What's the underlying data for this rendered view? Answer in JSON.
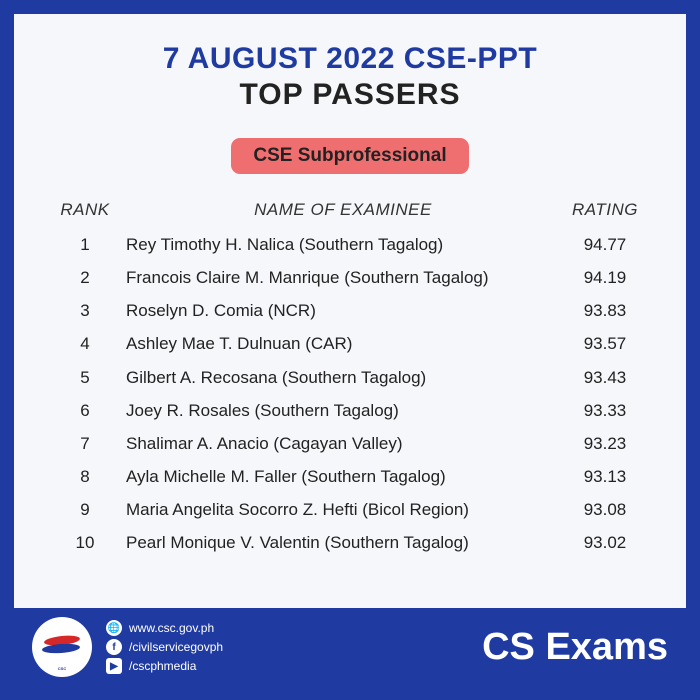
{
  "header": {
    "line1": "7 AUGUST 2022 CSE-PPT",
    "line2": "TOP PASSERS"
  },
  "category_pill": "CSE Subprofessional",
  "table": {
    "columns": {
      "rank": "RANK",
      "name": "NAME OF EXAMINEE",
      "rating": "RATING"
    },
    "rows": [
      {
        "rank": "1",
        "name": "Rey Timothy H. Nalica (Southern Tagalog)",
        "rating": "94.77"
      },
      {
        "rank": "2",
        "name": "Francois Claire M. Manrique (Southern Tagalog)",
        "rating": "94.19"
      },
      {
        "rank": "3",
        "name": "Roselyn D. Comia (NCR)",
        "rating": "93.83"
      },
      {
        "rank": "4",
        "name": "Ashley Mae T. Dulnuan (CAR)",
        "rating": "93.57"
      },
      {
        "rank": "5",
        "name": "Gilbert A. Recosana (Southern Tagalog)",
        "rating": "93.43"
      },
      {
        "rank": "6",
        "name": "Joey R. Rosales (Southern Tagalog)",
        "rating": "93.33"
      },
      {
        "rank": "7",
        "name": "Shalimar A. Anacio (Cagayan Valley)",
        "rating": "93.23"
      },
      {
        "rank": "8",
        "name": "Ayla Michelle M. Faller (Southern Tagalog)",
        "rating": "93.13"
      },
      {
        "rank": "9",
        "name": "Maria Angelita Socorro Z. Hefti (Bicol Region)",
        "rating": "93.08"
      },
      {
        "rank": "10",
        "name": "Pearl Monique V. Valentin (Southern Tagalog)",
        "rating": "93.02"
      }
    ]
  },
  "footer": {
    "brand": "CS Exams",
    "links": {
      "web": "www.csc.gov.ph",
      "fb": "/civilservicegovph",
      "yt": "/cscphmedia"
    },
    "icons": {
      "web": "🌐",
      "fb": "f",
      "yt": "▶"
    }
  },
  "colors": {
    "frame_border": "#1f3aa0",
    "background": "#f5f7fa",
    "title1": "#1f3aa0",
    "title2": "#222222",
    "pill_bg": "#ef6f70",
    "text": "#222222",
    "footer_bg": "#1f3aa0",
    "footer_text": "#ffffff"
  }
}
